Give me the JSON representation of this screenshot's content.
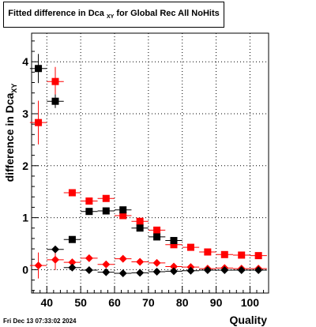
{
  "chart_data": {
    "type": "scatter",
    "title_prefix": "Fitted difference in Dca",
    "title_sub": "XY",
    "title_suffix": "for Global Rec All NoHits",
    "xlabel": "Quality",
    "ylabel_prefix": "difference in Dca",
    "ylabel_sub": "XY",
    "xlim": [
      35.5,
      105.5
    ],
    "ylim": [
      -0.45,
      4.55
    ],
    "xticks": [
      40,
      50,
      60,
      70,
      80,
      90,
      100
    ],
    "yticks": [
      0,
      1,
      2,
      3,
      4
    ],
    "grid": true,
    "series": [
      {
        "marker": "square",
        "color": "#ff0000",
        "points": [
          {
            "x": 37.5,
            "y": 2.83,
            "ey": 0.42
          },
          {
            "x": 42.5,
            "y": 3.62,
            "ey": 0.28
          },
          {
            "x": 47.5,
            "y": 1.48,
            "ey": 0.03
          },
          {
            "x": 52.5,
            "y": 1.32,
            "ey": 0.03
          },
          {
            "x": 57.5,
            "y": 1.37,
            "ey": 0.03
          },
          {
            "x": 62.5,
            "y": 1.04,
            "ey": 0.03
          },
          {
            "x": 67.5,
            "y": 0.93,
            "ey": 0.03
          },
          {
            "x": 72.5,
            "y": 0.76,
            "ey": 0.03
          },
          {
            "x": 77.5,
            "y": 0.48,
            "ey": 0.03
          },
          {
            "x": 82.5,
            "y": 0.43,
            "ey": 0.03
          },
          {
            "x": 87.5,
            "y": 0.34,
            "ey": 0.03
          },
          {
            "x": 92.5,
            "y": 0.29,
            "ey": 0.03
          },
          {
            "x": 97.5,
            "y": 0.28,
            "ey": 0.03
          },
          {
            "x": 102.5,
            "y": 0.27,
            "ey": 0.03
          }
        ]
      },
      {
        "marker": "square",
        "color": "#000000",
        "points": [
          {
            "x": 37.5,
            "y": 3.87,
            "ey": 0.28
          },
          {
            "x": 42.5,
            "y": 3.24,
            "ey": 0.13
          },
          {
            "x": 47.5,
            "y": 0.58,
            "ey": 0.03
          },
          {
            "x": 52.5,
            "y": 1.12,
            "ey": 0.03
          },
          {
            "x": 57.5,
            "y": 1.13,
            "ey": 0.03
          },
          {
            "x": 62.5,
            "y": 1.15,
            "ey": 0.03
          },
          {
            "x": 67.5,
            "y": 0.8,
            "ey": 0.03
          },
          {
            "x": 72.5,
            "y": 0.63,
            "ey": 0.03
          },
          {
            "x": 77.5,
            "y": 0.56,
            "ey": 0.03
          }
        ]
      },
      {
        "marker": "diamond",
        "color": "#ff0000",
        "points": [
          {
            "x": 37.5,
            "y": 0.08,
            "ey": 0.25
          },
          {
            "x": 42.5,
            "y": 0.19,
            "ey": 0.2
          },
          {
            "x": 47.5,
            "y": 0.14,
            "ey": 0.03
          },
          {
            "x": 52.5,
            "y": 0.22,
            "ey": 0.03
          },
          {
            "x": 57.5,
            "y": 0.1,
            "ey": 0.03
          },
          {
            "x": 62.5,
            "y": 0.21,
            "ey": 0.03
          },
          {
            "x": 67.5,
            "y": 0.15,
            "ey": 0.03
          },
          {
            "x": 72.5,
            "y": 0.13,
            "ey": 0.03
          },
          {
            "x": 77.5,
            "y": 0.06,
            "ey": 0.03
          },
          {
            "x": 82.5,
            "y": 0.05,
            "ey": 0.03
          },
          {
            "x": 87.5,
            "y": 0.02,
            "ey": 0.03
          },
          {
            "x": 92.5,
            "y": 0.03,
            "ey": 0.03
          },
          {
            "x": 97.5,
            "y": 0.02,
            "ey": 0.03
          },
          {
            "x": 102.5,
            "y": 0.02,
            "ey": 0.03
          }
        ]
      },
      {
        "marker": "diamond",
        "color": "#000000",
        "points": [
          {
            "x": 42.5,
            "y": 0.39,
            "ey": 0.03
          },
          {
            "x": 47.5,
            "y": 0.04,
            "ey": 0.03
          },
          {
            "x": 52.5,
            "y": -0.01,
            "ey": 0.03
          },
          {
            "x": 57.5,
            "y": -0.05,
            "ey": 0.03
          },
          {
            "x": 62.5,
            "y": -0.07,
            "ey": 0.03
          },
          {
            "x": 67.5,
            "y": -0.06,
            "ey": 0.03
          },
          {
            "x": 72.5,
            "y": -0.04,
            "ey": 0.03
          },
          {
            "x": 77.5,
            "y": -0.03,
            "ey": 0.03
          },
          {
            "x": 82.5,
            "y": -0.02,
            "ey": 0.03
          },
          {
            "x": 87.5,
            "y": -0.01,
            "ey": 0.03
          },
          {
            "x": 92.5,
            "y": -0.01,
            "ey": 0.03
          },
          {
            "x": 97.5,
            "y": -0.01,
            "ey": 0.03
          },
          {
            "x": 102.5,
            "y": -0.01,
            "ey": 0.03
          }
        ]
      }
    ]
  },
  "footer": {
    "datestamp": "Fri Dec 13 07:33:02 2024"
  }
}
